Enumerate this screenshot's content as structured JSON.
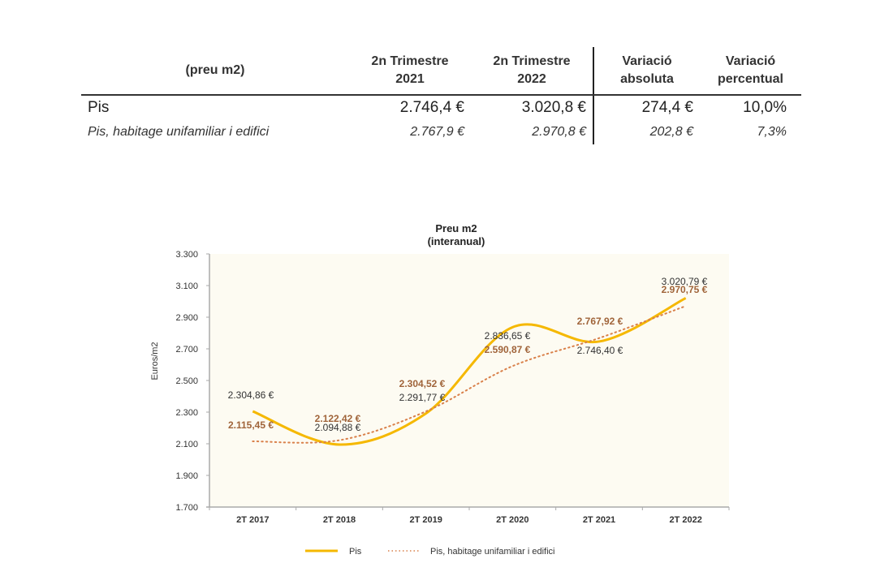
{
  "table": {
    "headers": [
      {
        "line1": "(preu m2)",
        "line2": ""
      },
      {
        "line1": "2n Trimestre",
        "line2": "2021"
      },
      {
        "line1": "2n Trimestre",
        "line2": "2022"
      },
      {
        "line1": "Variació",
        "line2": "absoluta"
      },
      {
        "line1": "Variació",
        "line2": "percentual"
      }
    ],
    "rows": [
      {
        "label": "Pis",
        "q2_2021": "2.746,4 €",
        "q2_2022": "3.020,8 €",
        "abs": "274,4 €",
        "pct": "10,0%"
      },
      {
        "label": "Pis, habitage unifamiliar i edifici",
        "q2_2021": "2.767,9 €",
        "q2_2022": "2.970,8 €",
        "abs": "202,8 €",
        "pct": "7,3%"
      }
    ],
    "colors": {
      "positive": "#2aa35a"
    }
  },
  "chart_data": {
    "type": "line",
    "title": "Preu m2",
    "subtitle": "(interanual)",
    "xlabel": "",
    "ylabel": "Euros/m2",
    "categories": [
      "2T 2017",
      "2T 2018",
      "2T 2019",
      "2T 2020",
      "2T 2021",
      "2T 2022"
    ],
    "yticks": [
      "3.300",
      "3.100",
      "2.900",
      "2.700",
      "2.500",
      "2.300",
      "2.100",
      "1.900",
      "1.700"
    ],
    "ylim": [
      1700,
      3300
    ],
    "grid": false,
    "legend_position": "bottom",
    "series": [
      {
        "name": "Pis",
        "style": "solid",
        "color": "#f5b800",
        "values": [
          2304.86,
          2094.88,
          2291.77,
          2836.65,
          2746.4,
          3020.79
        ],
        "labels": [
          "2.304,86 €",
          "2.094,88 €",
          "2.291,77 €",
          "2.836,65 €",
          "2.746,40 €",
          "3.020,79 €"
        ]
      },
      {
        "name": "Pis, habitage unifamiliar i edifici",
        "style": "dotted",
        "color": "#d9804a",
        "values": [
          2115.45,
          2122.42,
          2304.52,
          2590.87,
          2767.92,
          2970.75
        ],
        "labels": [
          "2.115,45 €",
          "2.122,42 €",
          "2.304,52 €",
          "2.590,87 €",
          "2.767,92 €",
          "2.970,75 €"
        ]
      }
    ],
    "plot_background": "#fdfbf2"
  }
}
